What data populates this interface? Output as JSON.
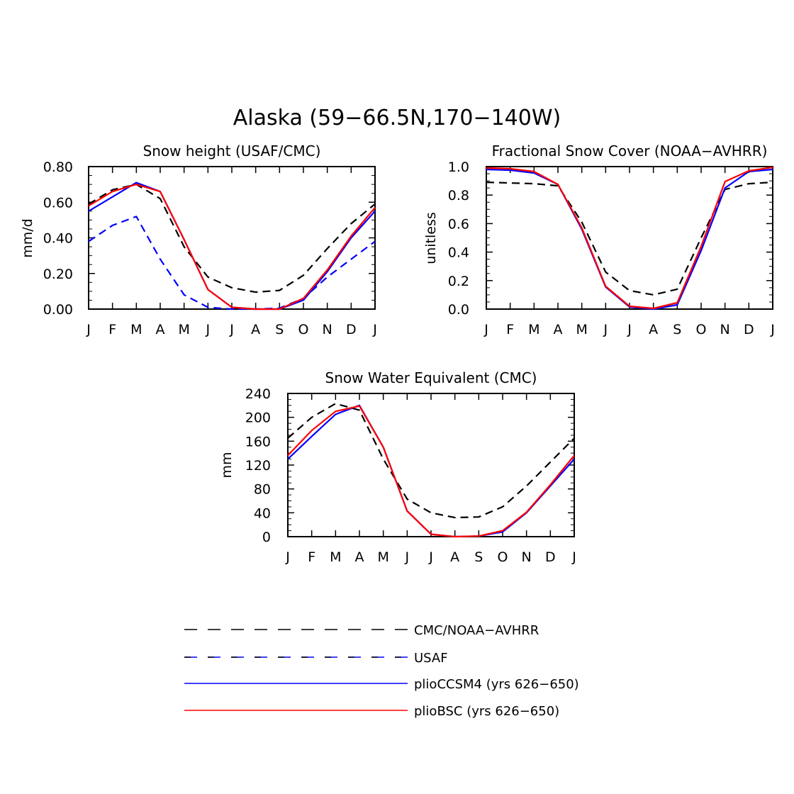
{
  "figure": {
    "title": "Alaska (59−66.5N,170−140W)"
  },
  "colors": {
    "obs": "#000000",
    "usaf": "#0000ff",
    "ccsm4": "#0000ff",
    "bsc": "#ff0000"
  },
  "legend": [
    {
      "label": "CMC/NOAA−AVHRR",
      "color": "#000000",
      "dashed": true
    },
    {
      "label": "USAF",
      "color": "#0000ff",
      "dashed": true,
      "dash_color_alt": "#000000"
    },
    {
      "label": "plioCCSM4 (yrs 626−650)",
      "color": "#0000ff",
      "dashed": false
    },
    {
      "label": "plioBSC (yrs 626−650)",
      "color": "#ff0000",
      "dashed": false
    }
  ],
  "chart_data": [
    {
      "type": "line",
      "title": "Snow height (USAF/CMC)",
      "ylabel": "mm/d",
      "xlabel": "",
      "categories": [
        "J",
        "F",
        "M",
        "A",
        "M",
        "J",
        "J",
        "A",
        "S",
        "O",
        "N",
        "D",
        "J"
      ],
      "ylim": [
        0,
        0.8
      ],
      "yticks": [
        0,
        0.2,
        0.4,
        0.6,
        0.8
      ],
      "ytick_labels": [
        "0.00",
        "0.20",
        "0.40",
        "0.60",
        "0.80"
      ],
      "series": [
        {
          "name": "CMC/NOAA−AVHRR",
          "style": "dashed",
          "color": "#000000",
          "values": [
            0.59,
            0.67,
            0.7,
            0.62,
            0.35,
            0.18,
            0.12,
            0.095,
            0.105,
            0.19,
            0.34,
            0.48,
            0.59
          ]
        },
        {
          "name": "USAF",
          "style": "dashed",
          "color": "#0000ff",
          "values": [
            0.38,
            0.47,
            0.52,
            0.28,
            0.08,
            0.01,
            0.0,
            0.0,
            0.005,
            0.06,
            0.18,
            0.28,
            0.38
          ]
        },
        {
          "name": "plioCCSM4 (yrs 626−650)",
          "style": "solid",
          "color": "#0000ff",
          "values": [
            0.55,
            0.63,
            0.71,
            0.66,
            0.39,
            0.11,
            0.01,
            0.0,
            0.0,
            0.05,
            0.21,
            0.4,
            0.55
          ]
        },
        {
          "name": "plioBSC (yrs 626−650)",
          "style": "solid",
          "color": "#ff0000",
          "values": [
            0.58,
            0.66,
            0.7,
            0.66,
            0.39,
            0.11,
            0.01,
            0.0,
            0.0,
            0.06,
            0.22,
            0.41,
            0.57
          ]
        }
      ]
    },
    {
      "type": "line",
      "title": "Fractional Snow Cover (NOAA−AVHRR)",
      "ylabel": "unitless",
      "xlabel": "",
      "categories": [
        "J",
        "F",
        "M",
        "A",
        "M",
        "J",
        "J",
        "A",
        "S",
        "O",
        "N",
        "D",
        "J"
      ],
      "ylim": [
        0,
        1.0
      ],
      "yticks": [
        0,
        0.2,
        0.4,
        0.6,
        0.8,
        1.0
      ],
      "ytick_labels": [
        "0.0",
        "0.2",
        "0.4",
        "0.6",
        "0.8",
        "1.0"
      ],
      "series": [
        {
          "name": "CMC/NOAA−AVHRR",
          "style": "dashed",
          "color": "#000000",
          "values": [
            0.89,
            0.885,
            0.88,
            0.865,
            0.61,
            0.26,
            0.13,
            0.1,
            0.14,
            0.5,
            0.84,
            0.88,
            0.89
          ]
        },
        {
          "name": "plioCCSM4 (yrs 626−650)",
          "style": "solid",
          "color": "#0000ff",
          "values": [
            0.98,
            0.975,
            0.955,
            0.875,
            0.56,
            0.155,
            0.015,
            0.0,
            0.03,
            0.41,
            0.85,
            0.965,
            0.98
          ]
        },
        {
          "name": "plioBSC (yrs 626−650)",
          "style": "solid",
          "color": "#ff0000",
          "values": [
            0.99,
            0.985,
            0.965,
            0.875,
            0.57,
            0.16,
            0.02,
            0.005,
            0.045,
            0.44,
            0.895,
            0.97,
            0.995
          ]
        }
      ]
    },
    {
      "type": "line",
      "title": "Snow Water Equivalent (CMC)",
      "ylabel": "mm",
      "xlabel": "",
      "categories": [
        "J",
        "F",
        "M",
        "A",
        "M",
        "J",
        "J",
        "A",
        "S",
        "O",
        "N",
        "D",
        "J"
      ],
      "ylim": [
        0,
        240
      ],
      "yticks": [
        0,
        40,
        80,
        120,
        160,
        200,
        240
      ],
      "ytick_labels": [
        "0",
        "40",
        "80",
        "120",
        "160",
        "200",
        "240"
      ],
      "series": [
        {
          "name": "CMC/NOAA−AVHRR",
          "style": "dashed",
          "color": "#000000",
          "values": [
            165,
            200,
            223,
            212,
            130,
            63,
            40,
            32,
            33,
            50,
            85,
            125,
            165
          ]
        },
        {
          "name": "plioCCSM4 (yrs 626−650)",
          "style": "solid",
          "color": "#0000ff",
          "values": [
            130,
            168,
            205,
            220,
            150,
            43,
            4,
            0,
            1,
            8,
            40,
            85,
            130
          ]
        },
        {
          "name": "plioBSC (yrs 626−650)",
          "style": "solid",
          "color": "#ff0000",
          "values": [
            136,
            178,
            210,
            219,
            150,
            43,
            4,
            0,
            1,
            10,
            41,
            87,
            136
          ]
        }
      ]
    }
  ]
}
